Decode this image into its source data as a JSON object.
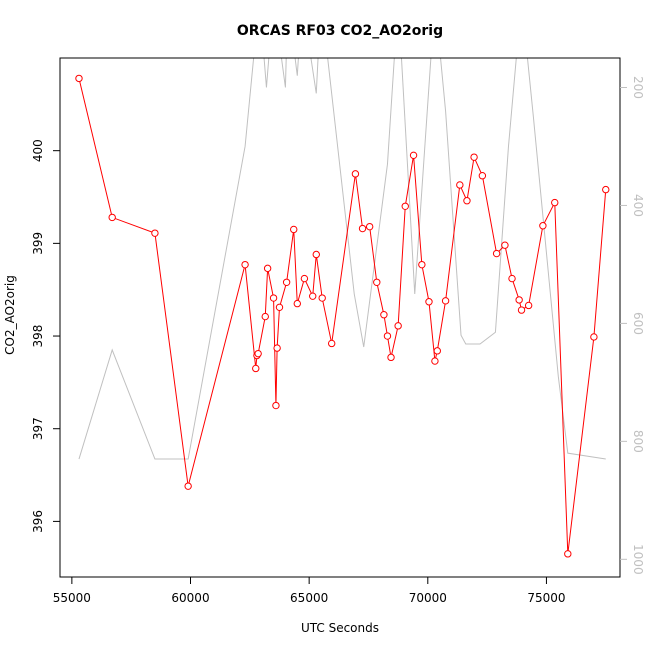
{
  "chart_data": {
    "type": "line",
    "title": "ORCAS RF03 CO2_AO2orig",
    "xlabel": "UTC Seconds",
    "ylabel": "CO2_AO2orig",
    "xlim": [
      54500,
      78100
    ],
    "ylim": [
      395.4,
      401.0
    ],
    "xticks": [
      55000,
      60000,
      65000,
      70000,
      75000
    ],
    "yticks": [
      396,
      397,
      398,
      399,
      400
    ],
    "y2lim": [
      1030,
      150
    ],
    "y2ticks": [
      200,
      400,
      600,
      800,
      1000
    ],
    "grid": false,
    "series": [
      {
        "color": "#ff0000",
        "style": "line+open-circles",
        "axis": "left",
        "x": [
          55300,
          56700,
          58500,
          59900,
          62300,
          62750,
          62800,
          62850,
          63150,
          63250,
          63500,
          63600,
          63650,
          63750,
          64050,
          64350,
          64500,
          64800,
          65150,
          65300,
          65550,
          65950,
          66950,
          67250,
          67550,
          67850,
          68150,
          68300,
          68450,
          68750,
          69050,
          69400,
          69750,
          70050,
          70300,
          70400,
          70750,
          71350,
          71650,
          71950,
          72300,
          72900,
          73250,
          73550,
          73850,
          73950,
          74250,
          74850,
          75350,
          75900,
          77000,
          77500
        ],
        "y": [
          400.78,
          399.28,
          399.11,
          396.38,
          398.77,
          397.65,
          397.79,
          397.81,
          398.21,
          398.73,
          398.41,
          397.25,
          397.87,
          398.31,
          398.58,
          399.15,
          398.35,
          398.62,
          398.43,
          398.88,
          398.41,
          397.92,
          399.75,
          399.16,
          399.18,
          398.58,
          398.23,
          398.0,
          397.77,
          398.11,
          399.4,
          399.95,
          398.77,
          398.37,
          397.73,
          397.84,
          398.38,
          399.63,
          399.46,
          399.93,
          399.73,
          398.89,
          398.98,
          398.62,
          398.39,
          398.28,
          398.33,
          399.19,
          399.44,
          395.65,
          397.99,
          399.58
        ]
      },
      {
        "color": "#c0c0c0",
        "style": "line",
        "axis": "right",
        "x": [
          55300,
          56700,
          58500,
          59900,
          62300,
          62900,
          63200,
          63500,
          64000,
          64100,
          64500,
          64700,
          65300,
          65500,
          66900,
          67300,
          68300,
          68750,
          69450,
          70300,
          70750,
          71400,
          71600,
          72200,
          72850,
          73400,
          73950,
          74450,
          75500,
          75900,
          77500
        ],
        "y": [
          830,
          645,
          830,
          830,
          300,
          50,
          200,
          50,
          200,
          50,
          180,
          50,
          210,
          50,
          550,
          640,
          330,
          50,
          550,
          50,
          240,
          620,
          635,
          635,
          615,
          300,
          50,
          250,
          690,
          820,
          830
        ]
      }
    ]
  }
}
